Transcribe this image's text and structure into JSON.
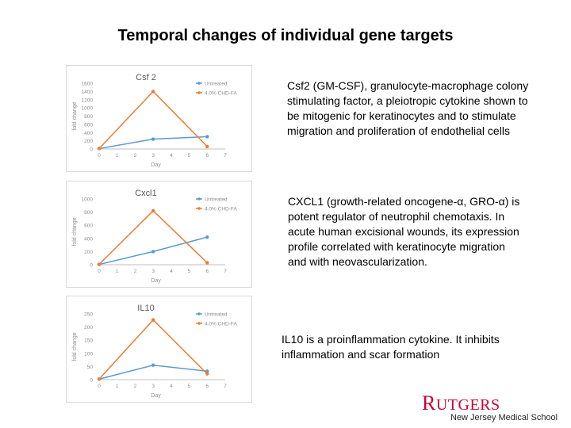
{
  "slide": {
    "title": "Temporal changes of individual gene targets"
  },
  "colors": {
    "untreated": "#5b9bd5",
    "treated": "#ed7d31",
    "axis": "#bfbfbf",
    "tick_text": "#8c8c8c",
    "logo": "#cc0033"
  },
  "chart_data": [
    {
      "type": "line",
      "title": "Csf 2",
      "xlabel": "Day",
      "ylabel": "fold change",
      "xlim": [
        0,
        7
      ],
      "ylim": [
        0,
        1600
      ],
      "xticks": [
        "0",
        "1",
        "2",
        "3",
        "4",
        "5",
        "6",
        "7"
      ],
      "yticks": [
        "0",
        "200",
        "400",
        "600",
        "800",
        "1000",
        "1200",
        "1400",
        "1600"
      ],
      "legend_position": "top-right",
      "series": [
        {
          "name": "Untreated",
          "color": "#5b9bd5",
          "x": [
            0,
            3,
            6
          ],
          "y": [
            10,
            240,
            300
          ]
        },
        {
          "name": "4.0% CHD-FA",
          "color": "#ed7d31",
          "x": [
            0,
            3,
            6
          ],
          "y": [
            10,
            1400,
            60
          ]
        }
      ]
    },
    {
      "type": "line",
      "title": "Cxcl1",
      "xlabel": "Day",
      "ylabel": "fold change",
      "xlim": [
        0,
        7
      ],
      "ylim": [
        0,
        1000
      ],
      "xticks": [
        "0",
        "1",
        "2",
        "3",
        "4",
        "5",
        "6",
        "7"
      ],
      "yticks": [
        "0",
        "200",
        "400",
        "600",
        "800",
        "1000"
      ],
      "legend_position": "top-right",
      "series": [
        {
          "name": "Untreated",
          "color": "#5b9bd5",
          "x": [
            0,
            3,
            6
          ],
          "y": [
            5,
            200,
            420
          ]
        },
        {
          "name": "4.0% CHD-FA",
          "color": "#ed7d31",
          "x": [
            0,
            3,
            6
          ],
          "y": [
            5,
            820,
            30
          ]
        }
      ]
    },
    {
      "type": "line",
      "title": "IL10",
      "xlabel": "Day",
      "ylabel": "fold change",
      "xlim": [
        0,
        7
      ],
      "ylim": [
        0,
        250
      ],
      "xticks": [
        "0",
        "1",
        "2",
        "3",
        "4",
        "5",
        "6",
        "7"
      ],
      "yticks": [
        "0",
        "50",
        "100",
        "150",
        "200",
        "250"
      ],
      "legend_position": "top-right",
      "series": [
        {
          "name": "Untreated",
          "color": "#5b9bd5",
          "x": [
            0,
            3,
            6
          ],
          "y": [
            2,
            55,
            32
          ]
        },
        {
          "name": "4.0% CHD-FA",
          "color": "#ed7d31",
          "x": [
            0,
            3,
            6
          ],
          "y": [
            2,
            227,
            22
          ]
        }
      ]
    }
  ],
  "descriptions": [
    {
      "text": "Csf2 (GM-CSF), granulocyte-macrophage colony stimulating factor, a pleiotropic cytokine shown to be mitogenic for keratinocytes and to stimulate migration and proliferation of endothelial cells"
    },
    {
      "text": "CXCL1 (growth-related oncogene-α, GRO-α) is potent regulator of neutrophil chemotaxis. In acute human excisional wounds, its expression profile correlated with keratinocyte migration and with neovascularization."
    },
    {
      "text": "IL10 is a proinflammation cytokine. It inhibits inflammation and scar formation"
    }
  ],
  "logo": {
    "word_first": "R",
    "word_rest": "UTGERS",
    "subtitle": "New Jersey Medical School"
  }
}
